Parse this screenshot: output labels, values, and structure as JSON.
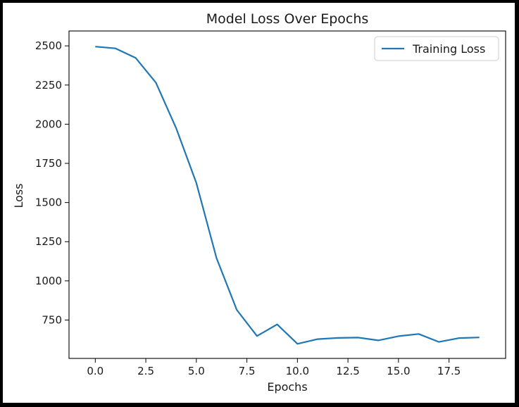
{
  "chart_data": {
    "type": "line",
    "title": "Model Loss Over Epochs",
    "xlabel": "Epochs",
    "ylabel": "Loss",
    "xlim": [
      -1.3,
      20.3
    ],
    "ylim": [
      505,
      2595
    ],
    "x_ticks": [
      0,
      2.5,
      5,
      7.5,
      10,
      12.5,
      15,
      17.5
    ],
    "x_tick_labels": [
      "0.0",
      "2.5",
      "5.0",
      "7.5",
      "10.0",
      "12.5",
      "15.0",
      "17.5"
    ],
    "y_ticks": [
      750,
      1000,
      1250,
      1500,
      1750,
      2000,
      2250,
      2500
    ],
    "y_tick_labels": [
      "750",
      "1000",
      "1250",
      "1500",
      "1750",
      "2000",
      "2250",
      "2500"
    ],
    "grid": false,
    "legend_position": "top-right",
    "series": [
      {
        "name": "Training Loss",
        "color": "#1f77b4",
        "x": [
          0,
          1,
          2,
          3,
          4,
          5,
          6,
          7,
          8,
          9,
          10,
          11,
          12,
          13,
          14,
          15,
          16,
          17,
          18,
          19
        ],
        "values": [
          2495,
          2484,
          2423,
          2265,
          1975,
          1625,
          1145,
          815,
          648,
          722,
          598,
          628,
          636,
          638,
          620,
          647,
          661,
          610,
          635,
          639
        ]
      }
    ]
  }
}
